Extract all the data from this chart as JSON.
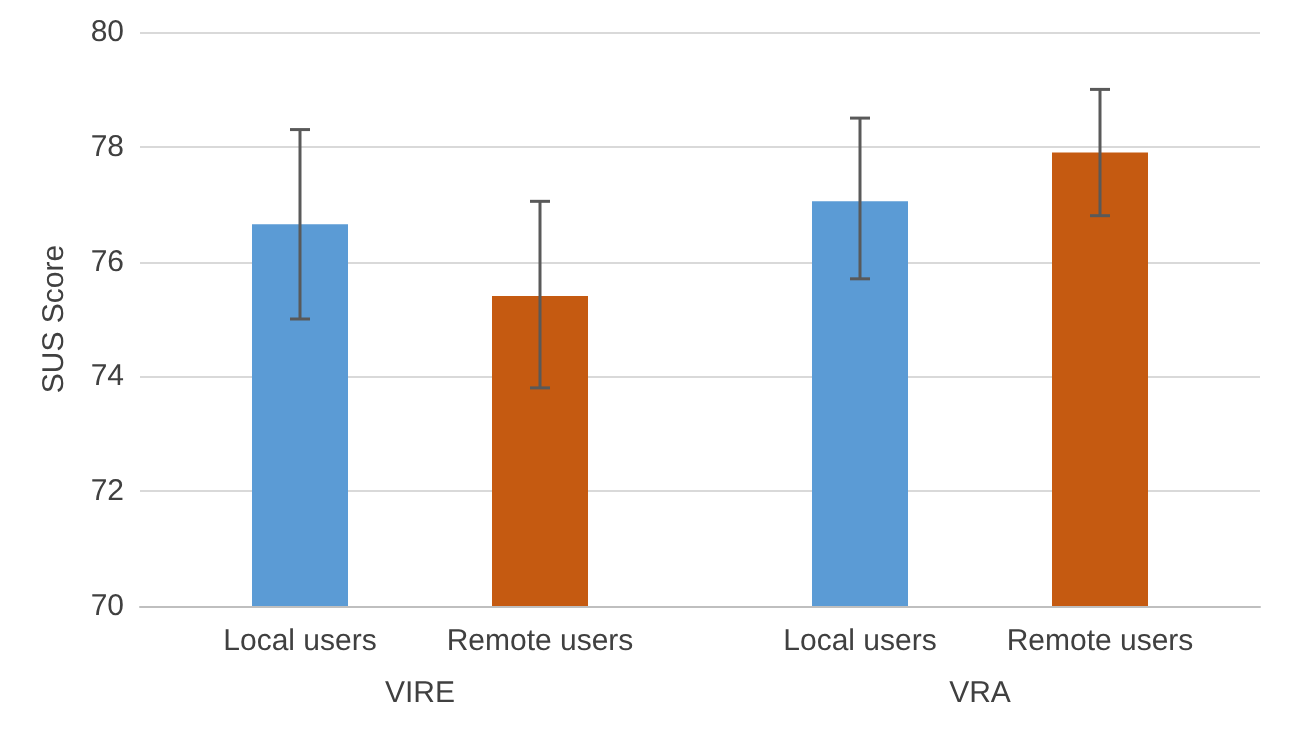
{
  "chart_data": {
    "type": "bar",
    "ylabel": "SUS Score",
    "categories": [
      "VIRE",
      "VRA"
    ],
    "series": [
      {
        "name": "Local users",
        "color": "#5b9bd5",
        "values": [
          76.65,
          77.05
        ],
        "errors": [
          [
            75.0,
            78.3
          ],
          [
            75.7,
            78.5
          ]
        ]
      },
      {
        "name": "Remote users",
        "color": "#c55a11",
        "values": [
          75.4,
          77.9
        ],
        "errors": [
          [
            73.8,
            77.05
          ],
          [
            76.8,
            79.0
          ]
        ]
      }
    ],
    "ylim": [
      70,
      80
    ],
    "yticks": [
      70,
      72,
      74,
      76,
      78,
      80
    ],
    "grid": "y",
    "legend": false
  }
}
